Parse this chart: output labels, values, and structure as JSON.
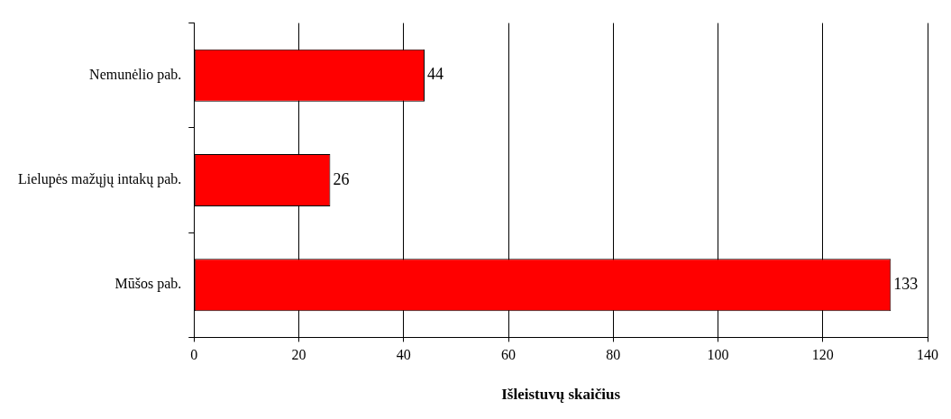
{
  "chart_data": {
    "type": "bar",
    "orientation": "horizontal",
    "categories": [
      "Nemunėlio pab.",
      "Lielupės mažųjų intakų pab.",
      "Mūšos pab."
    ],
    "values": [
      44,
      26,
      133
    ],
    "color": "#ff0000",
    "xlabel": "Išleistuvų skaičius",
    "xlim": [
      0,
      140
    ],
    "xticks": [
      0,
      20,
      40,
      60,
      80,
      100,
      120,
      140
    ],
    "grid": "x",
    "data_labels": true,
    "legend": false
  }
}
